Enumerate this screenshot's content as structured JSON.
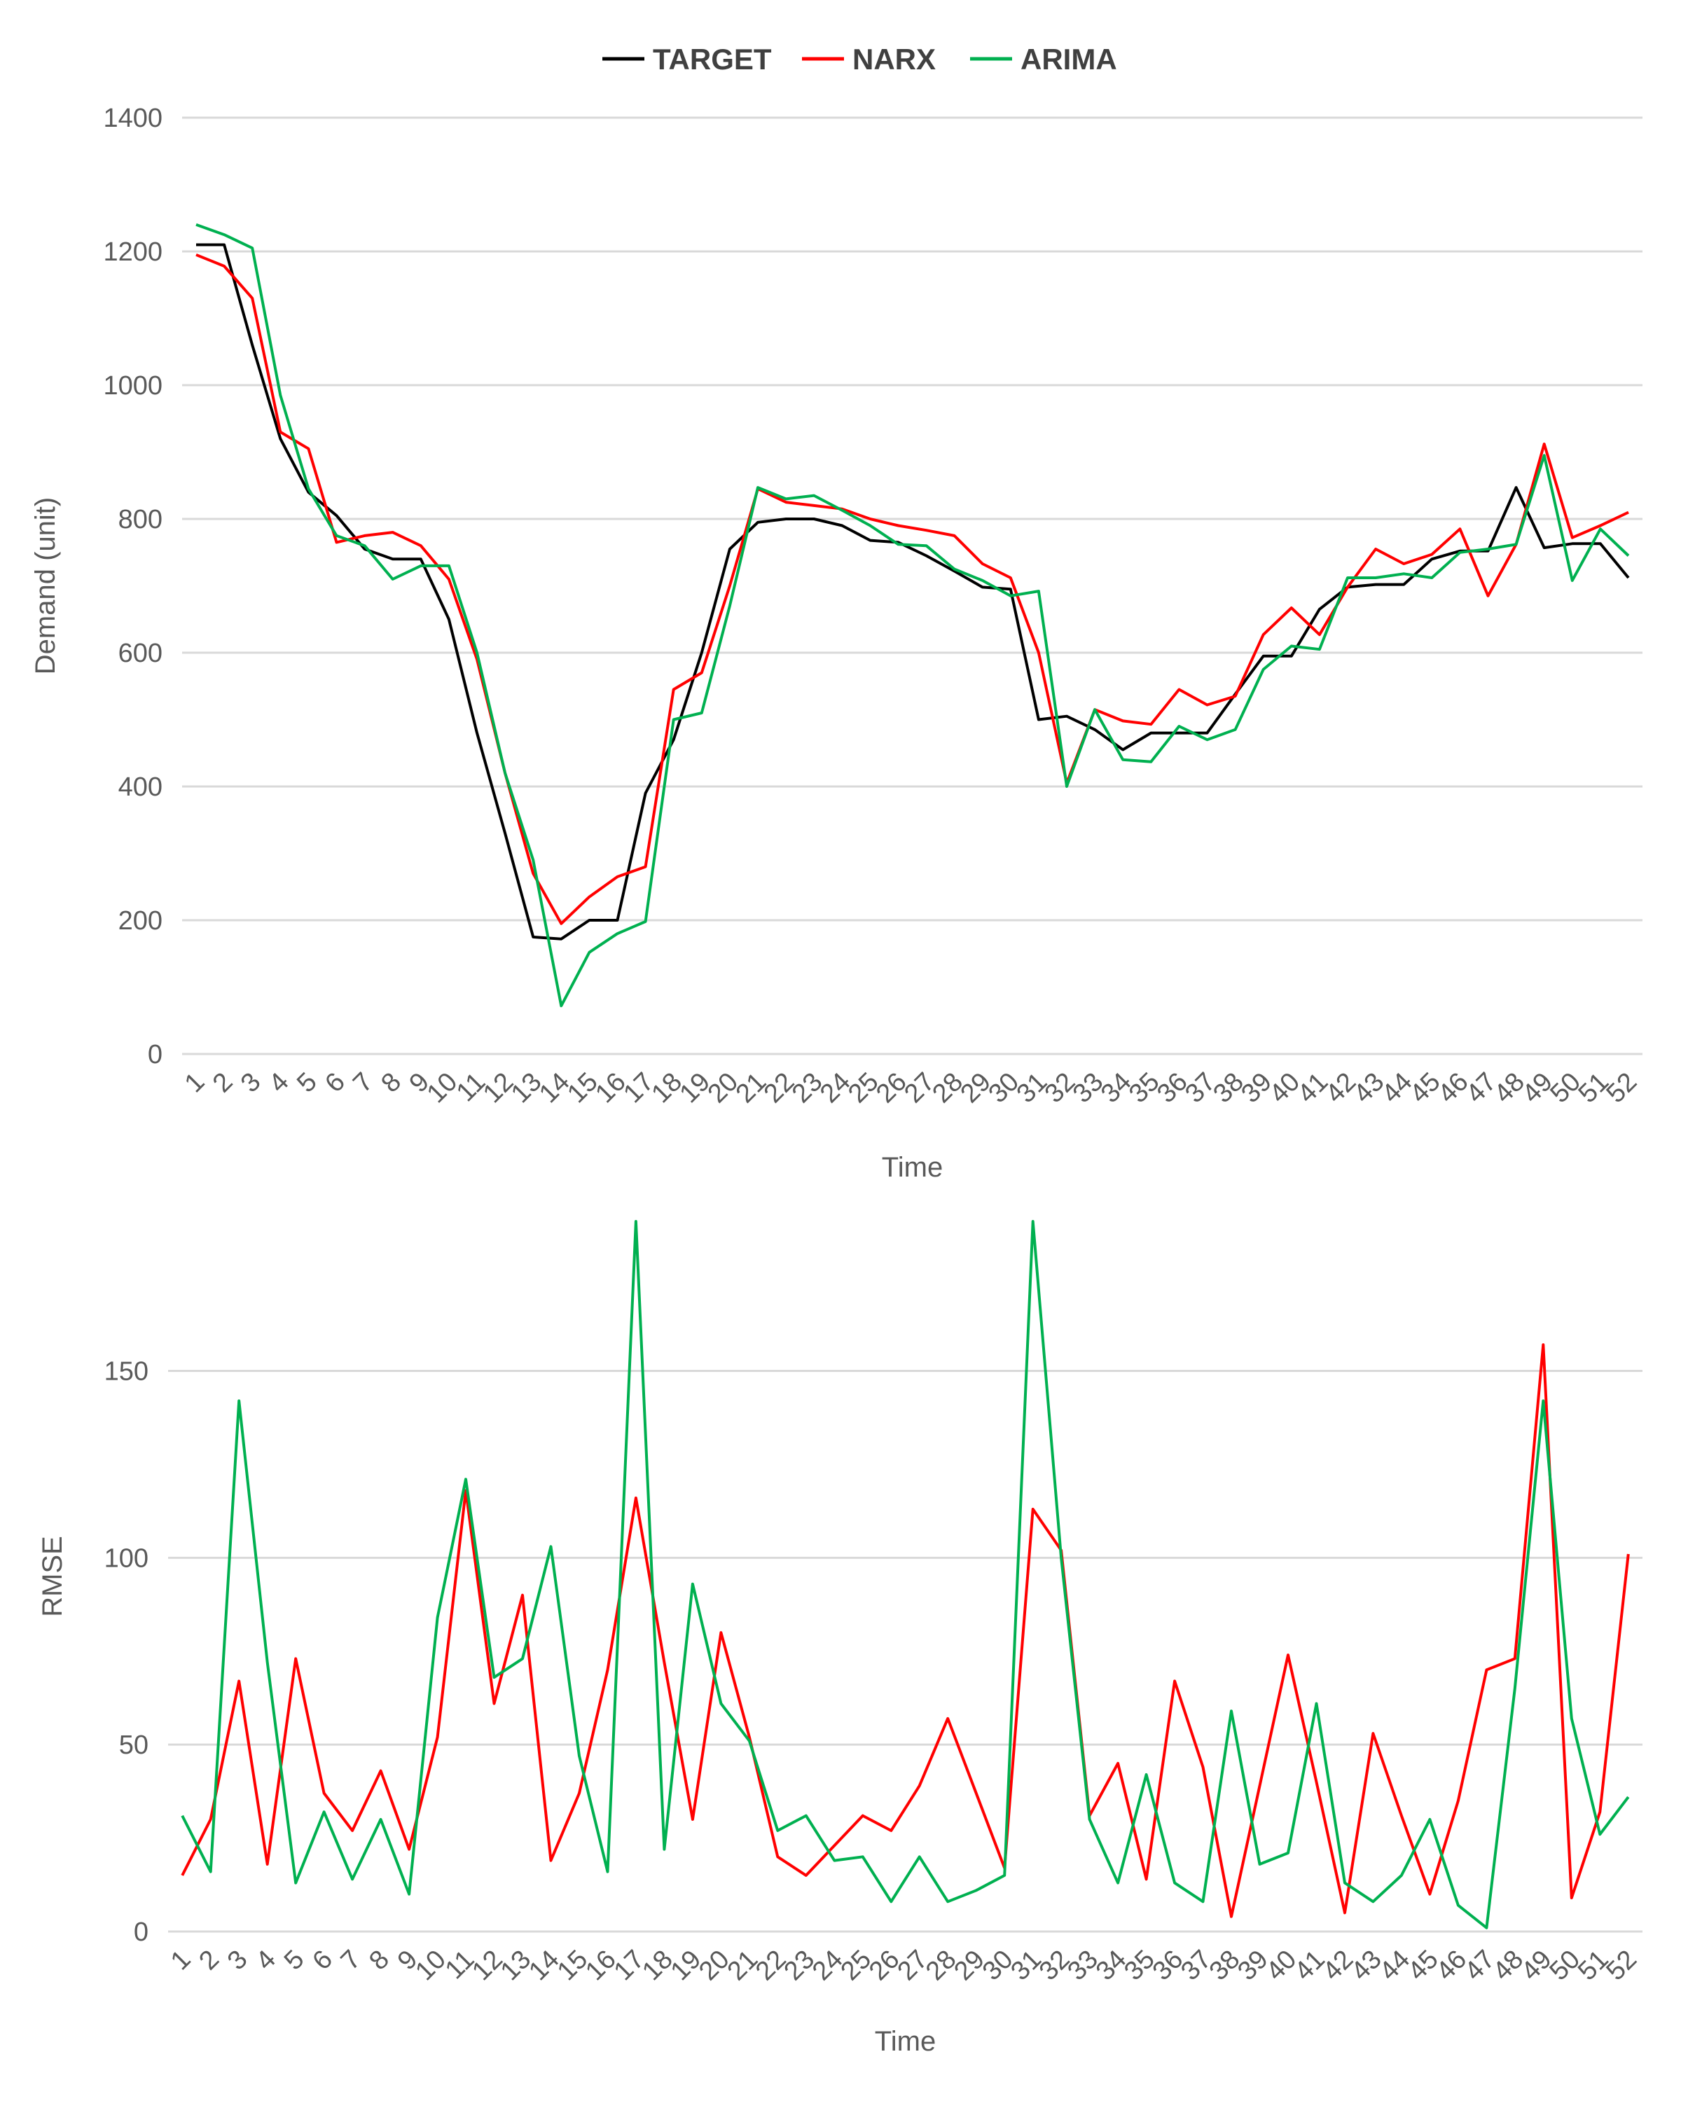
{
  "colors": {
    "target": "#000000",
    "narx": "#ff0000",
    "arima": "#00b050",
    "grid": "#d9d9d9",
    "text": "#595959"
  },
  "chart_data": [
    {
      "type": "line",
      "xlabel": "Time",
      "ylabel": "Demand (unit)",
      "ylim": [
        0,
        1400
      ],
      "yticks": [
        "0",
        "200",
        "400",
        "600",
        "800",
        "1000",
        "1200",
        "1400"
      ],
      "grid": true,
      "legend_position": "top-center",
      "x": [
        1,
        2,
        3,
        4,
        5,
        6,
        7,
        8,
        9,
        10,
        11,
        12,
        13,
        14,
        15,
        16,
        17,
        18,
        19,
        20,
        21,
        22,
        23,
        24,
        25,
        26,
        27,
        28,
        29,
        30,
        31,
        32,
        33,
        34,
        35,
        36,
        37,
        38,
        39,
        40,
        41,
        42,
        43,
        44,
        45,
        46,
        47,
        48,
        49,
        50,
        51,
        52
      ],
      "series": [
        {
          "name": "TARGET",
          "color": "#000000",
          "values": [
            1210,
            1210,
            1060,
            920,
            840,
            805,
            755,
            740,
            740,
            650,
            480,
            330,
            175,
            172,
            200,
            200,
            390,
            470,
            600,
            755,
            795,
            800,
            800,
            790,
            768,
            765,
            745,
            722,
            698,
            695,
            500,
            505,
            485,
            455,
            480,
            480,
            480,
            538,
            595,
            595,
            665,
            698,
            702,
            702,
            740,
            752,
            752,
            847,
            757,
            763,
            763,
            712
          ]
        },
        {
          "name": "NARX",
          "color": "#ff0000",
          "values": [
            1195,
            1178,
            1130,
            930,
            905,
            765,
            775,
            780,
            760,
            710,
            590,
            420,
            270,
            195,
            235,
            265,
            280,
            545,
            570,
            700,
            845,
            825,
            820,
            815,
            800,
            790,
            783,
            775,
            733,
            712,
            600,
            405,
            515,
            498,
            493,
            545,
            522,
            535,
            627,
            667,
            627,
            698,
            755,
            733,
            747,
            785,
            685,
            762,
            912,
            772,
            790,
            810
          ]
        },
        {
          "name": "ARIMA",
          "color": "#00b050",
          "values": [
            1240,
            1225,
            1205,
            985,
            845,
            775,
            760,
            710,
            730,
            730,
            600,
            420,
            290,
            72,
            152,
            180,
            198,
            500,
            510,
            670,
            847,
            830,
            835,
            813,
            790,
            762,
            760,
            725,
            708,
            685,
            692,
            400,
            515,
            440,
            437,
            490,
            470,
            485,
            575,
            610,
            605,
            712,
            712,
            718,
            712,
            750,
            755,
            762,
            895,
            708,
            785,
            745
          ]
        }
      ]
    },
    {
      "type": "line",
      "xlabel": "Time",
      "ylabel": "RMSE",
      "ylim": [
        0,
        190
      ],
      "yticks": [
        "0",
        "50",
        "100",
        "150"
      ],
      "grid": true,
      "x": [
        1,
        2,
        3,
        4,
        5,
        6,
        7,
        8,
        9,
        10,
        11,
        12,
        13,
        14,
        15,
        16,
        17,
        18,
        19,
        20,
        21,
        22,
        23,
        24,
        25,
        26,
        27,
        28,
        29,
        30,
        31,
        32,
        33,
        34,
        35,
        36,
        37,
        38,
        39,
        40,
        41,
        42,
        43,
        44,
        45,
        46,
        47,
        48,
        49,
        50,
        51,
        52
      ],
      "series": [
        {
          "name": "NARX",
          "color": "#ff0000",
          "values": [
            15,
            30,
            67,
            18,
            73,
            37,
            27,
            43,
            22,
            52,
            118,
            61,
            90,
            19,
            37,
            70,
            116,
            72,
            30,
            80,
            52,
            20,
            15,
            23,
            31,
            27,
            39,
            57,
            37,
            17,
            113,
            102,
            31,
            45,
            14,
            67,
            44,
            4,
            39,
            74,
            40,
            5,
            53,
            31,
            10,
            35,
            70,
            73,
            157,
            9,
            32,
            101
          ]
        },
        {
          "name": "ARIMA",
          "color": "#00b050",
          "values": [
            31,
            16,
            142,
            72,
            13,
            32,
            14,
            30,
            10,
            84,
            121,
            68,
            73,
            103,
            47,
            16,
            190,
            22,
            93,
            61,
            51,
            27,
            31,
            19,
            20,
            8,
            20,
            8,
            11,
            15,
            190,
            100,
            30,
            13,
            42,
            13,
            8,
            59,
            18,
            21,
            61,
            13,
            8,
            15,
            30,
            7,
            1,
            65,
            142,
            57,
            26,
            36
          ]
        }
      ]
    }
  ]
}
